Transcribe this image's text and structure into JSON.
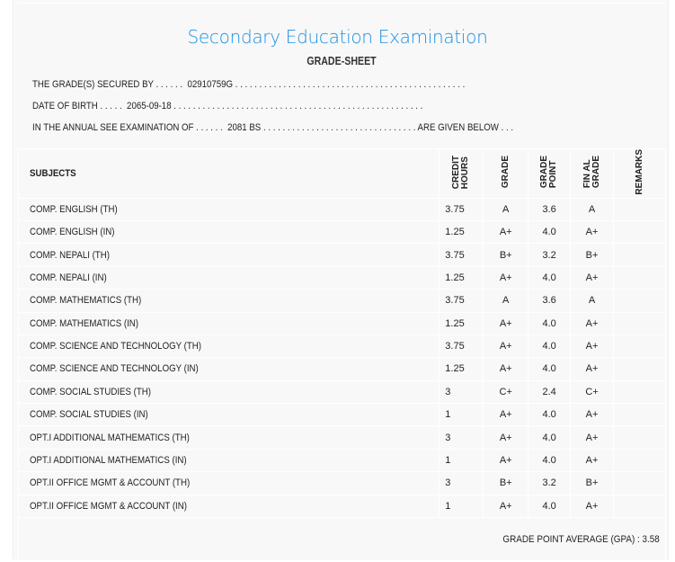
{
  "header": {
    "title": "Secondary Education Examination",
    "subtitle": "GRADE-SHEET"
  },
  "info": {
    "secured_by": "THE GRADE(S) SECURED BY . . . . . .  02910759G . . . . . . . . . . . . . . . . . . . . . . . . . . . . . . . . . . . . . . . . . . . . . . . .",
    "dob": "DATE OF BIRTH . . . . .  2065-09-18 . . . . . . . . . . . . . . . . . . . . . . . . . . . . . . . . . . . . . . . . . . . . . . . . . . . .",
    "exam": "IN THE ANNUAL SEE EXAMINATION OF . . . . . .  2081 BS . . . . . . . . . . . . . . . . . . . . . . . . . . . . . . . . ARE GIVEN BELOW . . ."
  },
  "table": {
    "headers": {
      "subjects": "SUBJECTS",
      "credit_hours": "CREDIT\nHOURS",
      "grade": "GRADE",
      "grade_point": "GRADE\nPOINT",
      "final_grade": "FIN AL\nGRADE",
      "remarks": "REMARKS"
    },
    "rows": [
      {
        "subject": "COMP. ENGLISH (TH)",
        "credit": "3.75",
        "grade": "A",
        "point": "3.6",
        "final": "A"
      },
      {
        "subject": "COMP. ENGLISH (IN)",
        "credit": "1.25",
        "grade": "A+",
        "point": "4.0",
        "final": "A+"
      },
      {
        "subject": "COMP. NEPALI (TH)",
        "credit": "3.75",
        "grade": "B+",
        "point": "3.2",
        "final": "B+"
      },
      {
        "subject": "COMP. NEPALI (IN)",
        "credit": "1.25",
        "grade": "A+",
        "point": "4.0",
        "final": "A+"
      },
      {
        "subject": "COMP. MATHEMATICS (TH)",
        "credit": "3.75",
        "grade": "A",
        "point": "3.6",
        "final": "A"
      },
      {
        "subject": "COMP. MATHEMATICS (IN)",
        "credit": "1.25",
        "grade": "A+",
        "point": "4.0",
        "final": "A+"
      },
      {
        "subject": "COMP. SCIENCE AND TECHNOLOGY (TH)",
        "credit": "3.75",
        "grade": "A+",
        "point": "4.0",
        "final": "A+"
      },
      {
        "subject": "COMP. SCIENCE AND TECHNOLOGY (IN)",
        "credit": "1.25",
        "grade": "A+",
        "point": "4.0",
        "final": "A+"
      },
      {
        "subject": "COMP. SOCIAL STUDIES (TH)",
        "credit": "3",
        "grade": "C+",
        "point": "2.4",
        "final": "C+"
      },
      {
        "subject": "COMP. SOCIAL STUDIES (IN)",
        "credit": "1",
        "grade": "A+",
        "point": "4.0",
        "final": "A+"
      },
      {
        "subject": "OPT.I ADDITIONAL MATHEMATICS (TH)",
        "credit": "3",
        "grade": "A+",
        "point": "4.0",
        "final": "A+"
      },
      {
        "subject": "OPT.I ADDITIONAL MATHEMATICS (IN)",
        "credit": "1",
        "grade": "A+",
        "point": "4.0",
        "final": "A+"
      },
      {
        "subject": "OPT.II OFFICE MGMT & ACCOUNT (TH)",
        "credit": "3",
        "grade": "B+",
        "point": "3.2",
        "final": "B+"
      },
      {
        "subject": "OPT.II OFFICE MGMT & ACCOUNT (IN)",
        "credit": "1",
        "grade": "A+",
        "point": "4.0",
        "final": "A+"
      }
    ],
    "gpa": "GRADE POINT AVERAGE (GPA) : 3.58"
  },
  "colors": {
    "title": "#1a8fe3",
    "background": "#f8f8f8"
  }
}
